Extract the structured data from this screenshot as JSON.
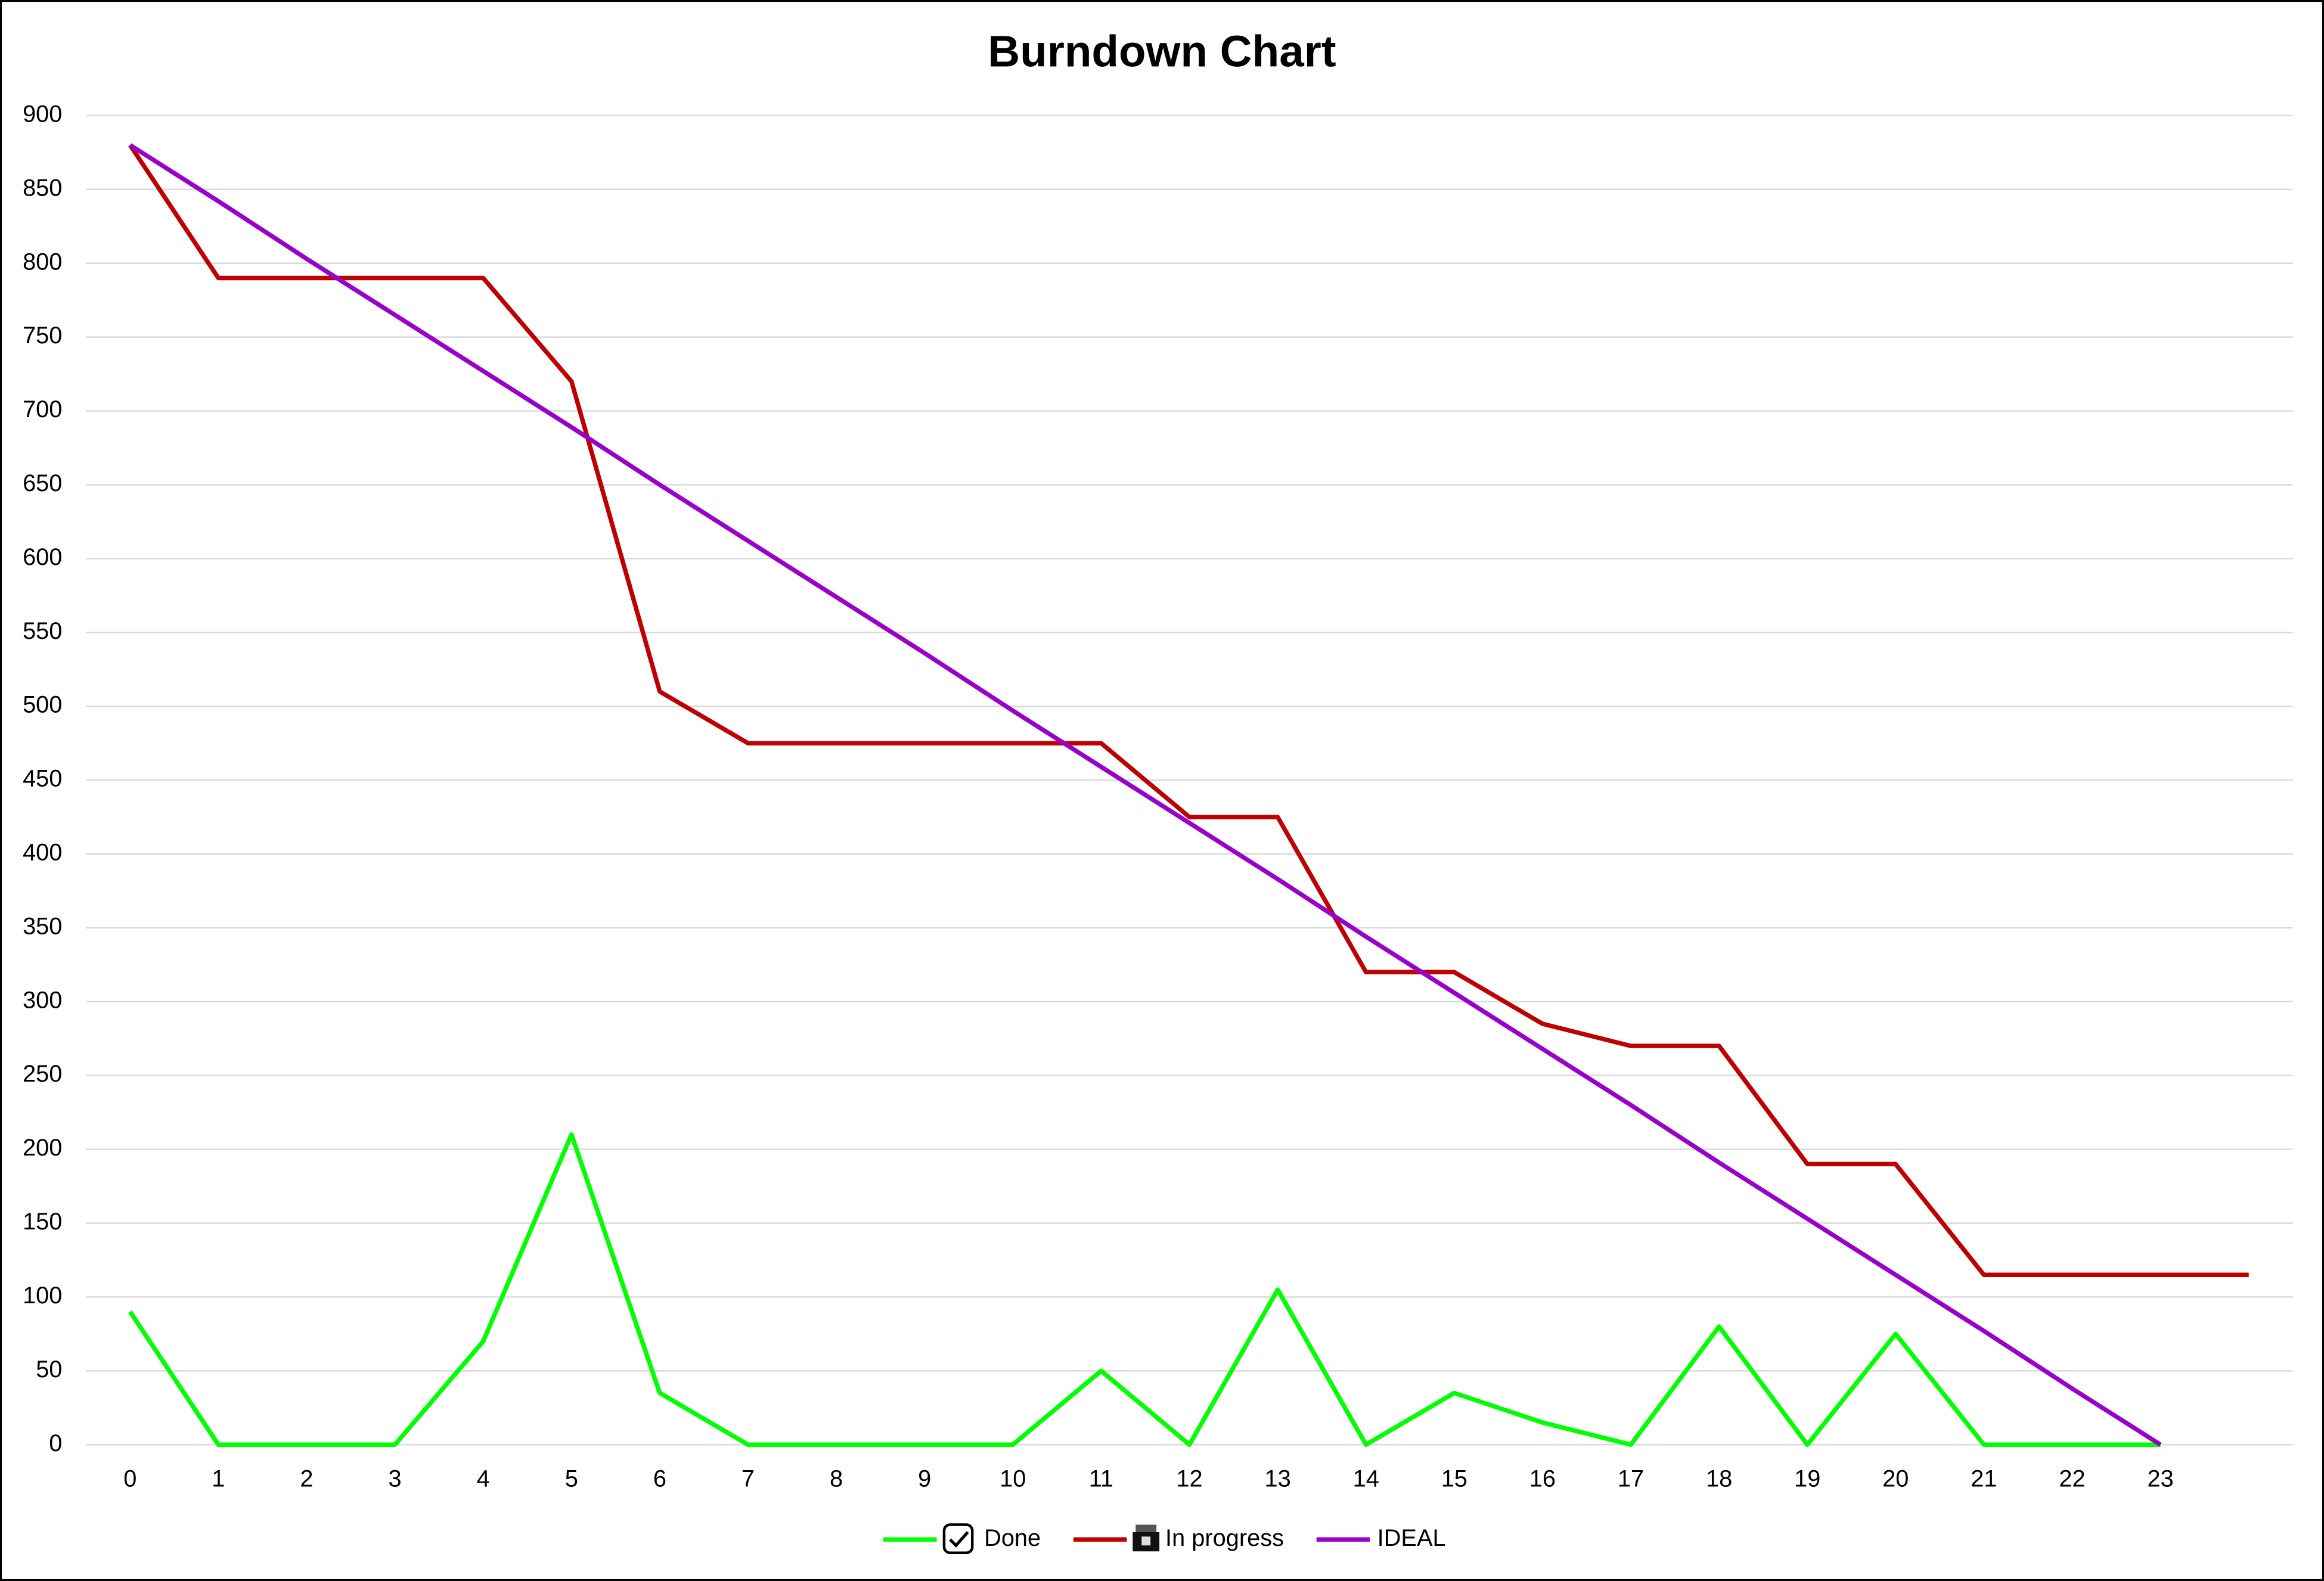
{
  "chart_data": {
    "type": "line",
    "title": "Burndown Chart",
    "categories": [
      "0",
      "1",
      "2",
      "3",
      "4",
      "5",
      "6",
      "7",
      "8",
      "9",
      "10",
      "11",
      "12",
      "13",
      "14",
      "15",
      "16",
      "17",
      "18",
      "19",
      "20",
      "21",
      "22",
      "23",
      null
    ],
    "series": [
      {
        "name": "Done",
        "color": "#00ff00",
        "values": [
          90,
          0,
          0,
          0,
          70,
          210,
          35,
          0,
          0,
          0,
          0,
          50,
          0,
          105,
          0,
          35,
          15,
          0,
          80,
          0,
          75,
          0,
          0,
          0,
          null
        ]
      },
      {
        "name": "In progress",
        "color": "#c00000",
        "values": [
          880,
          790,
          790,
          790,
          790,
          720,
          510,
          475,
          475,
          475,
          475,
          475,
          425,
          425,
          320,
          320,
          285,
          270,
          270,
          190,
          190,
          115,
          115,
          115,
          115
        ]
      },
      {
        "name": "IDEAL",
        "color": "#9900cc",
        "values": [
          880,
          842,
          803,
          765,
          727,
          689,
          650,
          612,
          574,
          536,
          497,
          459,
          421,
          383,
          344,
          306,
          268,
          230,
          191,
          153,
          115,
          77,
          38,
          0,
          null
        ]
      }
    ],
    "ylim": [
      0,
      900
    ],
    "yticks": [
      0,
      50,
      100,
      150,
      200,
      250,
      300,
      350,
      400,
      450,
      500,
      550,
      600,
      650,
      700,
      750,
      800,
      850,
      900
    ],
    "grid": true,
    "legend": "bottom"
  }
}
